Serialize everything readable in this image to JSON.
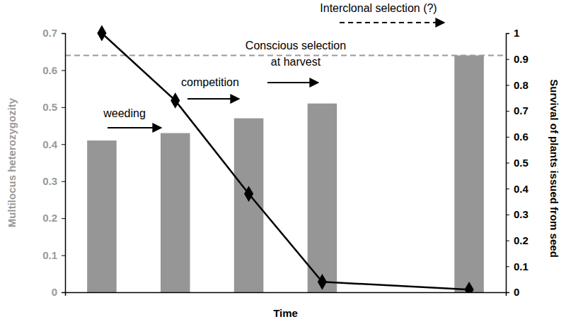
{
  "chart_data": {
    "type": "bar",
    "x": [
      1,
      2,
      3,
      4,
      6
    ],
    "xlim": [
      0.5,
      6.5
    ],
    "xlabel": "Time",
    "ylabel": "Multilocus heterozygozity",
    "y2label": "Survival of plants issued from seed",
    "ylim": [
      0,
      0.7
    ],
    "yticks": [
      0,
      0.1,
      0.2,
      0.3,
      0.4,
      0.5,
      0.6,
      0.7
    ],
    "y2lim": [
      0,
      1
    ],
    "y2ticks": [
      0,
      0.1,
      0.2,
      0.3,
      0.4,
      0.5,
      0.6,
      0.7,
      0.8,
      0.9,
      1
    ],
    "grid": false,
    "series": [
      {
        "type": "bar",
        "color": "#969696",
        "values": [
          0.41,
          0.43,
          0.47,
          0.51,
          0.64
        ]
      },
      {
        "type": "line",
        "axis": "y2",
        "color": "#000000",
        "marker": "diamond",
        "values": [
          1.0,
          0.74,
          0.38,
          0.04,
          0.01
        ]
      }
    ],
    "reference_line": 0.64,
    "annotations": [
      [
        "weeding"
      ],
      [
        "competition"
      ],
      [
        "Conscious selection",
        "at harvest"
      ],
      [
        "Interclonal selection (?)"
      ]
    ]
  }
}
